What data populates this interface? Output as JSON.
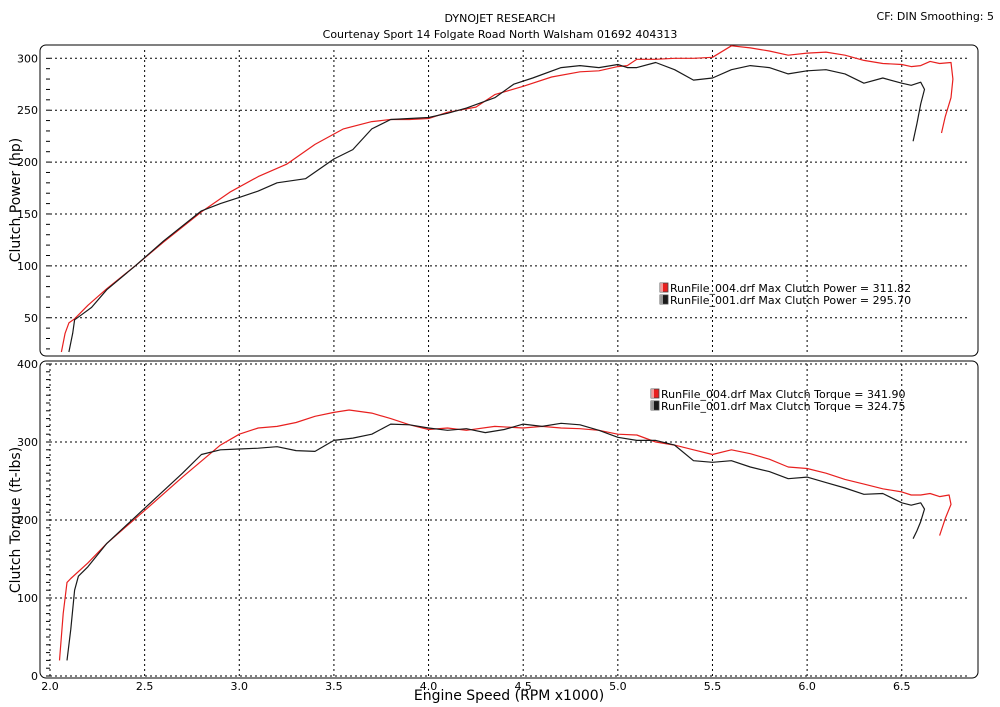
{
  "header": {
    "line1": "DYNOJET RESEARCH",
    "line2": "Courtenay Sport 14 Folgate Road North Walsham 01692 404313",
    "settings": "CF: DIN  Smoothing: 5"
  },
  "colors": {
    "run004": "#e8201f",
    "run001": "#1a1a1a",
    "grid": "#000000"
  },
  "chart_data": [
    {
      "type": "line",
      "ylabel": "Clutch Power (hp)",
      "xlabel": "",
      "xlim": [
        2.0,
        6.85
      ],
      "ylim": [
        17,
        308
      ],
      "yticks": [
        50,
        100,
        150,
        200,
        250,
        300
      ],
      "xticks": [
        2.5,
        3.0,
        3.5,
        4.0,
        4.5,
        5.0,
        5.5,
        6.0,
        6.5
      ],
      "legend": [
        "RunFile_004.drf Max Clutch Power = 311.82",
        "RunFile_001.drf Max Clutch Power = 295.70"
      ],
      "series": [
        {
          "name": "RunFile_004.drf",
          "color": "#e8201f",
          "points": [
            [
              2.06,
              17
            ],
            [
              2.08,
              35
            ],
            [
              2.1,
              45
            ],
            [
              2.13,
              49
            ],
            [
              2.2,
              62
            ],
            [
              2.3,
              78
            ],
            [
              2.45,
              100
            ],
            [
              2.6,
              123
            ],
            [
              2.8,
              152
            ],
            [
              2.95,
              171
            ],
            [
              3.1,
              186
            ],
            [
              3.25,
              198
            ],
            [
              3.4,
              217
            ],
            [
              3.55,
              232
            ],
            [
              3.7,
              239
            ],
            [
              3.8,
              241
            ],
            [
              3.9,
              241
            ],
            [
              4.0,
              242
            ],
            [
              4.1,
              248
            ],
            [
              4.25,
              253
            ],
            [
              4.35,
              265
            ],
            [
              4.5,
              273
            ],
            [
              4.65,
              282
            ],
            [
              4.8,
              287
            ],
            [
              4.9,
              288
            ],
            [
              5.0,
              292
            ],
            [
              5.05,
              293
            ],
            [
              5.1,
              299
            ],
            [
              5.2,
              299
            ],
            [
              5.3,
              300
            ],
            [
              5.4,
              300
            ],
            [
              5.5,
              301
            ],
            [
              5.6,
              312
            ],
            [
              5.7,
              310
            ],
            [
              5.8,
              307
            ],
            [
              5.9,
              303
            ],
            [
              6.0,
              305
            ],
            [
              6.1,
              306
            ],
            [
              6.2,
              303
            ],
            [
              6.3,
              298
            ],
            [
              6.4,
              295
            ],
            [
              6.5,
              294
            ],
            [
              6.55,
              292
            ],
            [
              6.6,
              293
            ],
            [
              6.65,
              297
            ],
            [
              6.7,
              295
            ],
            [
              6.76,
              296
            ],
            [
              6.77,
              280
            ],
            [
              6.76,
              262
            ],
            [
              6.73,
              244
            ],
            [
              6.71,
              228
            ]
          ]
        },
        {
          "name": "RunFile_001.drf",
          "color": "#1a1a1a",
          "points": [
            [
              2.1,
              17
            ],
            [
              2.12,
              35
            ],
            [
              2.13,
              48
            ],
            [
              2.16,
              52
            ],
            [
              2.22,
              60
            ],
            [
              2.3,
              77
            ],
            [
              2.45,
              100
            ],
            [
              2.6,
              124
            ],
            [
              2.8,
              153
            ],
            [
              2.9,
              160
            ],
            [
              3.0,
              166
            ],
            [
              3.1,
              172
            ],
            [
              3.2,
              180
            ],
            [
              3.35,
              184
            ],
            [
              3.5,
              203
            ],
            [
              3.6,
              212
            ],
            [
              3.7,
              232
            ],
            [
              3.8,
              241
            ],
            [
              3.9,
              242
            ],
            [
              4.0,
              243
            ],
            [
              4.1,
              247
            ],
            [
              4.2,
              252
            ],
            [
              4.35,
              262
            ],
            [
              4.45,
              275
            ],
            [
              4.55,
              281
            ],
            [
              4.7,
              291
            ],
            [
              4.8,
              293
            ],
            [
              4.9,
              291
            ],
            [
              5.0,
              294
            ],
            [
              5.05,
              291
            ],
            [
              5.1,
              291
            ],
            [
              5.2,
              296
            ],
            [
              5.3,
              289
            ],
            [
              5.4,
              279
            ],
            [
              5.5,
              281
            ],
            [
              5.6,
              289
            ],
            [
              5.7,
              293
            ],
            [
              5.8,
              291
            ],
            [
              5.9,
              285
            ],
            [
              6.0,
              288
            ],
            [
              6.1,
              289
            ],
            [
              6.2,
              285
            ],
            [
              6.3,
              276
            ],
            [
              6.4,
              281
            ],
            [
              6.5,
              276
            ],
            [
              6.55,
              274
            ],
            [
              6.6,
              277
            ],
            [
              6.62,
              270
            ],
            [
              6.6,
              256
            ],
            [
              6.58,
              237
            ],
            [
              6.56,
              220
            ]
          ]
        }
      ]
    },
    {
      "type": "line",
      "ylabel": "Clutch Torque (ft-lbs)",
      "xlabel": "Engine Speed (RPM x1000)",
      "xlim": [
        2.0,
        6.85
      ],
      "ylim": [
        0,
        400
      ],
      "yticks": [
        0,
        100,
        200,
        300,
        400
      ],
      "xticks": [
        2.0,
        2.5,
        3.0,
        3.5,
        4.0,
        4.5,
        5.0,
        5.5,
        6.0,
        6.5
      ],
      "legend": [
        "RunFile_004.drf Max Clutch Torque = 341.90",
        "RunFile_001.drf Max Clutch Torque = 324.75"
      ],
      "series": [
        {
          "name": "RunFile_004.drf",
          "color": "#e8201f",
          "points": [
            [
              2.05,
              20
            ],
            [
              2.07,
              80
            ],
            [
              2.09,
              120
            ],
            [
              2.11,
              125
            ],
            [
              2.2,
              145
            ],
            [
              2.3,
              170
            ],
            [
              2.5,
              212
            ],
            [
              2.7,
              255
            ],
            [
              2.9,
              296
            ],
            [
              3.0,
              310
            ],
            [
              3.1,
              318
            ],
            [
              3.2,
              320
            ],
            [
              3.3,
              325
            ],
            [
              3.4,
              333
            ],
            [
              3.5,
              338
            ],
            [
              3.58,
              341
            ],
            [
              3.7,
              337
            ],
            [
              3.8,
              330
            ],
            [
              3.9,
              322
            ],
            [
              4.0,
              316
            ],
            [
              4.1,
              318
            ],
            [
              4.2,
              315
            ],
            [
              4.35,
              320
            ],
            [
              4.5,
              318
            ],
            [
              4.6,
              320
            ],
            [
              4.7,
              318
            ],
            [
              4.8,
              317
            ],
            [
              4.9,
              315
            ],
            [
              5.0,
              310
            ],
            [
              5.1,
              309
            ],
            [
              5.2,
              300
            ],
            [
              5.3,
              296
            ],
            [
              5.4,
              290
            ],
            [
              5.5,
              284
            ],
            [
              5.6,
              290
            ],
            [
              5.7,
              285
            ],
            [
              5.8,
              278
            ],
            [
              5.9,
              268
            ],
            [
              6.0,
              266
            ],
            [
              6.1,
              260
            ],
            [
              6.2,
              252
            ],
            [
              6.3,
              246
            ],
            [
              6.4,
              240
            ],
            [
              6.5,
              236
            ],
            [
              6.55,
              232
            ],
            [
              6.6,
              232
            ],
            [
              6.65,
              234
            ],
            [
              6.7,
              230
            ],
            [
              6.75,
              232
            ],
            [
              6.76,
              220
            ],
            [
              6.73,
              202
            ],
            [
              6.7,
              180
            ]
          ]
        },
        {
          "name": "RunFile_001.drf",
          "color": "#1a1a1a",
          "points": [
            [
              2.09,
              20
            ],
            [
              2.11,
              60
            ],
            [
              2.13,
              110
            ],
            [
              2.15,
              128
            ],
            [
              2.2,
              140
            ],
            [
              2.3,
              170
            ],
            [
              2.5,
              215
            ],
            [
              2.7,
              260
            ],
            [
              2.8,
              284
            ],
            [
              2.9,
              290
            ],
            [
              3.0,
              291
            ],
            [
              3.1,
              292
            ],
            [
              3.2,
              294
            ],
            [
              3.3,
              289
            ],
            [
              3.4,
              288
            ],
            [
              3.5,
              302
            ],
            [
              3.6,
              305
            ],
            [
              3.7,
              310
            ],
            [
              3.8,
              323
            ],
            [
              3.9,
              322
            ],
            [
              4.0,
              318
            ],
            [
              4.1,
              315
            ],
            [
              4.2,
              317
            ],
            [
              4.3,
              312
            ],
            [
              4.4,
              316
            ],
            [
              4.5,
              323
            ],
            [
              4.6,
              320
            ],
            [
              4.7,
              324
            ],
            [
              4.8,
              322
            ],
            [
              4.9,
              315
            ],
            [
              5.0,
              306
            ],
            [
              5.1,
              302
            ],
            [
              5.2,
              302
            ],
            [
              5.3,
              296
            ],
            [
              5.4,
              276
            ],
            [
              5.5,
              274
            ],
            [
              5.6,
              276
            ],
            [
              5.7,
              268
            ],
            [
              5.8,
              262
            ],
            [
              5.9,
              253
            ],
            [
              6.0,
              255
            ],
            [
              6.1,
              248
            ],
            [
              6.2,
              241
            ],
            [
              6.3,
              233
            ],
            [
              6.4,
              234
            ],
            [
              6.5,
              222
            ],
            [
              6.55,
              219
            ],
            [
              6.6,
              222
            ],
            [
              6.62,
              214
            ],
            [
              6.6,
              198
            ],
            [
              6.58,
              186
            ],
            [
              6.56,
              176
            ]
          ]
        }
      ]
    }
  ]
}
